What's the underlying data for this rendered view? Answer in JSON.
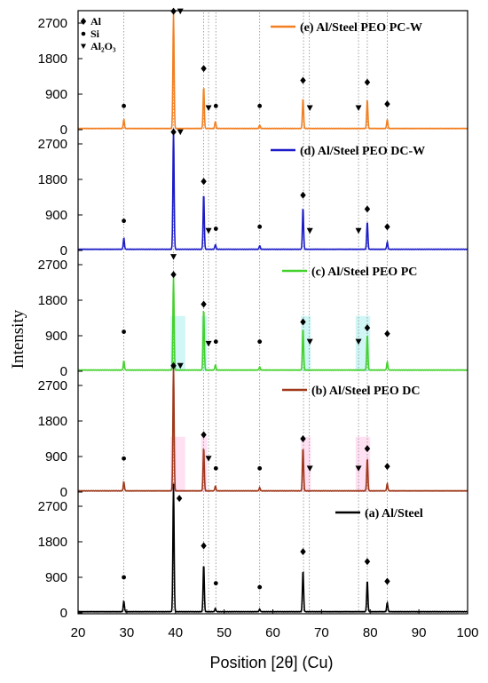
{
  "chart_data": {
    "type": "line",
    "xlabel": "Position [2θ] (Cu)",
    "ylabel": "Intensity",
    "xlim": [
      20,
      100
    ],
    "x_ticks": [
      20,
      30,
      40,
      50,
      60,
      70,
      80,
      90,
      100
    ],
    "y_ticks": [
      0,
      900,
      1800,
      2700
    ],
    "ylim_per_panel": [
      -100,
      3300
    ],
    "reference_lines": [
      29.4,
      39.6,
      45.8,
      46.8,
      48.3,
      57.3,
      66.3,
      67.5,
      77.6,
      79.4,
      83.5
    ],
    "marker_key": [
      {
        "symbol": "◆",
        "label": "Al"
      },
      {
        "symbol": "●",
        "label": "Si"
      },
      {
        "symbol": "▼",
        "label": "Al₂O₃"
      }
    ],
    "series": [
      {
        "name": "(e) Al/Steel PEO PC-W",
        "color": "#F28022",
        "baseline": 30,
        "peaks": [
          [
            29.4,
            230
          ],
          [
            39.6,
            2900
          ],
          [
            45.8,
            1050
          ],
          [
            48.2,
            180
          ],
          [
            57.3,
            90
          ],
          [
            66.2,
            760
          ],
          [
            79.4,
            730
          ],
          [
            83.5,
            230
          ]
        ],
        "markers": [
          {
            "x": 29.4,
            "y": 600,
            "type": "Si"
          },
          {
            "x": 39.6,
            "y": 3000,
            "type": "Al"
          },
          {
            "x": 41.0,
            "y": 3000,
            "type": "Al2O3"
          },
          {
            "x": 45.8,
            "y": 1550,
            "type": "Al"
          },
          {
            "x": 46.8,
            "y": 550,
            "type": "Al2O3"
          },
          {
            "x": 48.3,
            "y": 600,
            "type": "Si"
          },
          {
            "x": 57.3,
            "y": 600,
            "type": "Si"
          },
          {
            "x": 66.2,
            "y": 1250,
            "type": "Al"
          },
          {
            "x": 67.6,
            "y": 550,
            "type": "Al2O3"
          },
          {
            "x": 77.6,
            "y": 550,
            "type": "Al2O3"
          },
          {
            "x": 79.4,
            "y": 1200,
            "type": "Al"
          },
          {
            "x": 83.5,
            "y": 650,
            "type": "Al"
          }
        ]
      },
      {
        "name": "(d) Al/Steel PEO DC-W",
        "color": "#1B1BC8",
        "baseline": 30,
        "peaks": [
          [
            29.4,
            280
          ],
          [
            39.6,
            3050
          ],
          [
            45.8,
            1400
          ],
          [
            48.2,
            120
          ],
          [
            57.3,
            90
          ],
          [
            66.2,
            1050
          ],
          [
            79.4,
            700
          ],
          [
            83.5,
            180
          ]
        ],
        "markers": [
          {
            "x": 29.4,
            "y": 750,
            "type": "Si"
          },
          {
            "x": 39.6,
            "y": 3000,
            "type": "Al"
          },
          {
            "x": 41.0,
            "y": 3000,
            "type": "Al2O3"
          },
          {
            "x": 45.8,
            "y": 1750,
            "type": "Al"
          },
          {
            "x": 46.8,
            "y": 500,
            "type": "Al2O3"
          },
          {
            "x": 48.3,
            "y": 550,
            "type": "Si"
          },
          {
            "x": 57.3,
            "y": 600,
            "type": "Si"
          },
          {
            "x": 66.2,
            "y": 1400,
            "type": "Al"
          },
          {
            "x": 67.6,
            "y": 500,
            "type": "Al2O3"
          },
          {
            "x": 77.6,
            "y": 500,
            "type": "Al2O3"
          },
          {
            "x": 79.4,
            "y": 1050,
            "type": "Al"
          },
          {
            "x": 83.5,
            "y": 600,
            "type": "Al"
          }
        ]
      },
      {
        "name": "(c) Al/Steel PEO PC",
        "color": "#44D12C",
        "baseline": 30,
        "peaks": [
          [
            29.4,
            230
          ],
          [
            39.6,
            2350
          ],
          [
            45.8,
            1550
          ],
          [
            48.2,
            130
          ],
          [
            57.3,
            80
          ],
          [
            66.2,
            1050
          ],
          [
            79.4,
            900
          ],
          [
            83.5,
            200
          ]
        ],
        "shading": [
          [
            39.0,
            42.0
          ],
          [
            45.3,
            46.5
          ],
          [
            65.8,
            67.8
          ],
          [
            77.0,
            80.0
          ]
        ],
        "markers": [
          {
            "x": 29.4,
            "y": 1000,
            "type": "Si"
          },
          {
            "x": 39.6,
            "y": 2450,
            "type": "Al"
          },
          {
            "x": 39.6,
            "y": 2900,
            "type": "Al2O3"
          },
          {
            "x": 45.8,
            "y": 1700,
            "type": "Al"
          },
          {
            "x": 46.8,
            "y": 700,
            "type": "Al2O3"
          },
          {
            "x": 48.3,
            "y": 750,
            "type": "Si"
          },
          {
            "x": 57.3,
            "y": 750,
            "type": "Si"
          },
          {
            "x": 66.2,
            "y": 1250,
            "type": "Al"
          },
          {
            "x": 67.6,
            "y": 750,
            "type": "Al2O3"
          },
          {
            "x": 77.6,
            "y": 750,
            "type": "Al2O3"
          },
          {
            "x": 79.4,
            "y": 1100,
            "type": "Al"
          },
          {
            "x": 83.5,
            "y": 950,
            "type": "Al"
          }
        ]
      },
      {
        "name": "(b) Al/Steel PEO DC",
        "color": "#A0381A",
        "baseline": 30,
        "peaks": [
          [
            29.4,
            230
          ],
          [
            39.6,
            3200
          ],
          [
            45.8,
            1100
          ],
          [
            48.2,
            120
          ],
          [
            57.3,
            80
          ],
          [
            66.2,
            1100
          ],
          [
            79.4,
            820
          ],
          [
            83.5,
            180
          ]
        ],
        "shading": [
          [
            39.0,
            42.0
          ],
          [
            45.3,
            46.5
          ],
          [
            65.8,
            67.8
          ],
          [
            77.0,
            80.0
          ]
        ],
        "markers": [
          {
            "x": 29.4,
            "y": 850,
            "type": "Si"
          },
          {
            "x": 39.6,
            "y": 3200,
            "type": "Al"
          },
          {
            "x": 41.0,
            "y": 3200,
            "type": "Al2O3"
          },
          {
            "x": 45.8,
            "y": 1450,
            "type": "Al"
          },
          {
            "x": 46.8,
            "y": 850,
            "type": "Al2O3"
          },
          {
            "x": 48.3,
            "y": 600,
            "type": "Si"
          },
          {
            "x": 57.3,
            "y": 600,
            "type": "Si"
          },
          {
            "x": 66.2,
            "y": 1350,
            "type": "Al"
          },
          {
            "x": 67.6,
            "y": 600,
            "type": "Al2O3"
          },
          {
            "x": 77.6,
            "y": 600,
            "type": "Al2O3"
          },
          {
            "x": 79.4,
            "y": 1100,
            "type": "Al"
          },
          {
            "x": 83.5,
            "y": 650,
            "type": "Al"
          }
        ]
      },
      {
        "name": "(a) Al/Steel",
        "color": "#000000",
        "baseline": 30,
        "peaks": [
          [
            29.4,
            270
          ],
          [
            39.6,
            3250
          ],
          [
            45.8,
            1200
          ],
          [
            48.2,
            80
          ],
          [
            57.3,
            60
          ],
          [
            66.2,
            1050
          ],
          [
            79.4,
            780
          ],
          [
            83.5,
            230
          ]
        ],
        "markers": [
          {
            "x": 29.4,
            "y": 900,
            "type": "Si"
          },
          {
            "x": 40.8,
            "y": 2900,
            "type": "Al"
          },
          {
            "x": 45.8,
            "y": 1700,
            "type": "Al"
          },
          {
            "x": 48.3,
            "y": 750,
            "type": "Si"
          },
          {
            "x": 57.3,
            "y": 650,
            "type": "Si"
          },
          {
            "x": 66.2,
            "y": 1550,
            "type": "Al"
          },
          {
            "x": 79.4,
            "y": 1300,
            "type": "Al"
          },
          {
            "x": 83.5,
            "y": 800,
            "type": "Al"
          }
        ]
      }
    ]
  }
}
